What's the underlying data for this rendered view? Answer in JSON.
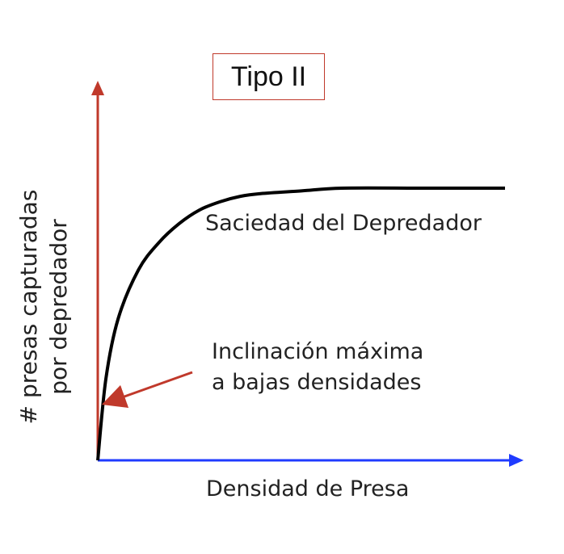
{
  "chart_data": {
    "type": "line",
    "title": "Tipo II",
    "xlabel": "Densidad de Presa",
    "ylabel": [
      "# presas capturadas",
      "por depredador"
    ],
    "series": [
      {
        "x": [
          0,
          0.02,
          0.05,
          0.1,
          0.15,
          0.2,
          0.25,
          0.3,
          0.35,
          0.4,
          0.5,
          0.6,
          0.8,
          1.0
        ],
        "y": [
          0,
          0.3,
          0.52,
          0.7,
          0.8,
          0.87,
          0.92,
          0.95,
          0.97,
          0.98,
          0.99,
          1.0,
          1.0,
          1.0
        ]
      }
    ],
    "annotations": {
      "saturation": "Saciedad del Depredador",
      "slope_line1": "Inclinación máxima",
      "slope_line2": "a bajas densidades"
    },
    "axis_colors": {
      "x": "#1f3bff",
      "y": "#c0392b",
      "curve": "#000000",
      "arrow": "#c0392b"
    },
    "grid": false
  }
}
